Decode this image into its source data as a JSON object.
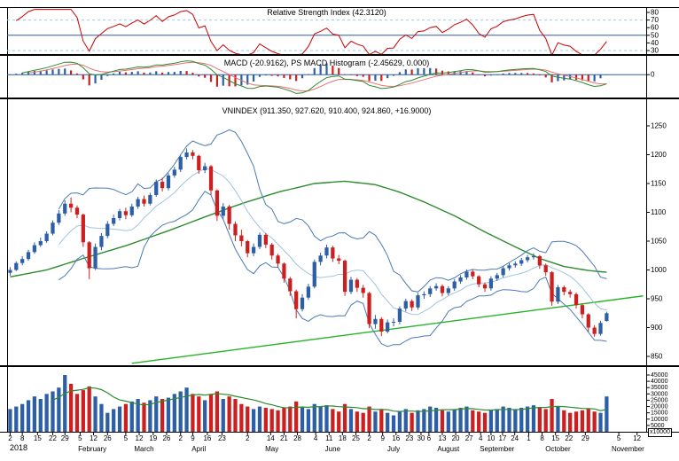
{
  "chart_data": {
    "type": "candlestick",
    "symbol": "VNINDEX",
    "panels": {
      "rsi": {
        "title": "Relative Strength Index (42.3120)",
        "indicator": "RSI",
        "value": 42.312,
        "y_ticks": [
          30,
          40,
          50,
          60,
          70,
          80
        ],
        "levels": {
          "overbought": 70,
          "midline": 50,
          "oversold": 30
        }
      },
      "macd": {
        "title": "MACD (-20.9162), PS MACD Histogram (-2.45629, 0.000)",
        "macd_value": -20.9162,
        "histogram_value": -2.45629,
        "signal_ref": 0.0,
        "y_ticks": [
          0
        ]
      },
      "price": {
        "title": "VNINDEX (911.350, 927.620, 910.400, 924.860, +16.9000)",
        "open": 911.35,
        "high": 927.62,
        "low": 910.4,
        "close": 924.86,
        "change": 16.9,
        "y_ticks": [
          850,
          900,
          950,
          1000,
          1050,
          1100,
          1150,
          1200,
          1250
        ]
      },
      "volume": {
        "y_ticks": [
          5000,
          10000,
          15000,
          20000,
          25000,
          30000,
          35000,
          40000,
          45000
        ],
        "unit": "x10000"
      }
    },
    "x_axis": {
      "year": "2018",
      "day_ticks": [
        [
          0,
          "2"
        ],
        [
          2,
          "8"
        ],
        [
          4.5,
          "15"
        ],
        [
          7,
          "22"
        ],
        [
          9,
          "29"
        ],
        [
          11.5,
          "5"
        ],
        [
          13.7,
          "12"
        ],
        [
          16,
          "26"
        ],
        [
          19,
          "5"
        ],
        [
          21.2,
          "12"
        ],
        [
          23.5,
          "19"
        ],
        [
          25.7,
          "26"
        ],
        [
          28,
          "2"
        ],
        [
          30,
          "9"
        ],
        [
          32.4,
          "16"
        ],
        [
          34.8,
          "23"
        ],
        [
          39,
          "2"
        ],
        [
          42.8,
          "14"
        ],
        [
          45,
          "21"
        ],
        [
          47.2,
          "28"
        ],
        [
          50.2,
          "4"
        ],
        [
          52.4,
          "11"
        ],
        [
          54.6,
          "18"
        ],
        [
          56.8,
          "25"
        ],
        [
          59,
          "2"
        ],
        [
          61.2,
          "9"
        ],
        [
          63.4,
          "16"
        ],
        [
          65.6,
          "23"
        ],
        [
          67.5,
          "30"
        ],
        [
          68.8,
          "6"
        ],
        [
          71,
          "13"
        ],
        [
          73.2,
          "20"
        ],
        [
          75.4,
          "27"
        ],
        [
          77.3,
          "4"
        ],
        [
          79,
          "10"
        ],
        [
          80.9,
          "17"
        ],
        [
          82.9,
          "24"
        ],
        [
          85.2,
          "1"
        ],
        [
          87.4,
          "8"
        ],
        [
          89.6,
          "15"
        ],
        [
          91.8,
          "22"
        ],
        [
          94.5,
          "29"
        ],
        [
          100,
          "5"
        ],
        [
          103,
          "12"
        ]
      ],
      "month_labels": [
        [
          13.5,
          "February"
        ],
        [
          22,
          "March"
        ],
        [
          31,
          "April"
        ],
        [
          43,
          "May"
        ],
        [
          53,
          "June"
        ],
        [
          63,
          "July"
        ],
        [
          72,
          "August"
        ],
        [
          80,
          "September"
        ],
        [
          90,
          "October"
        ],
        [
          101.5,
          "November"
        ]
      ]
    },
    "domain_slots": 105,
    "candles": [
      [
        995,
        1005,
        990,
        1000,
        18000
      ],
      [
        1000,
        1015,
        998,
        1012,
        20000
      ],
      [
        1012,
        1024,
        1008,
        1019,
        22000
      ],
      [
        1019,
        1035,
        1016,
        1031,
        25000
      ],
      [
        1031,
        1048,
        1028,
        1043,
        28000
      ],
      [
        1043,
        1056,
        1040,
        1050,
        26000
      ],
      [
        1050,
        1067,
        1047,
        1063,
        30000
      ],
      [
        1063,
        1086,
        1060,
        1082,
        32000
      ],
      [
        1082,
        1104,
        1078,
        1098,
        35000
      ],
      [
        1098,
        1121,
        1094,
        1115,
        45000
      ],
      [
        1115,
        1126,
        1100,
        1108,
        38000
      ],
      [
        1108,
        1112,
        1090,
        1096,
        30000
      ],
      [
        1096,
        1098,
        1040,
        1048,
        33000
      ],
      [
        1048,
        1050,
        984,
        1003,
        36000
      ],
      [
        1003,
        1046,
        1000,
        1040,
        28000
      ],
      [
        1040,
        1064,
        1034,
        1059,
        22000
      ],
      [
        1059,
        1085,
        1055,
        1080,
        15000
      ],
      [
        1080,
        1096,
        1076,
        1090,
        18000
      ],
      [
        1090,
        1106,
        1086,
        1102,
        20000
      ],
      [
        1102,
        1108,
        1088,
        1095,
        22000
      ],
      [
        1095,
        1115,
        1092,
        1110,
        24000
      ],
      [
        1110,
        1127,
        1106,
        1123,
        26000
      ],
      [
        1123,
        1129,
        1110,
        1115,
        23000
      ],
      [
        1115,
        1134,
        1112,
        1130,
        25000
      ],
      [
        1130,
        1157,
        1127,
        1153,
        28000
      ],
      [
        1153,
        1160,
        1136,
        1142,
        26000
      ],
      [
        1142,
        1168,
        1138,
        1164,
        27000
      ],
      [
        1164,
        1179,
        1160,
        1174,
        30000
      ],
      [
        1174,
        1199,
        1170,
        1196,
        32000
      ],
      [
        1196,
        1211,
        1192,
        1204,
        35000
      ],
      [
        1204,
        1208,
        1192,
        1198,
        30000
      ],
      [
        1198,
        1200,
        1167,
        1173,
        28000
      ],
      [
        1173,
        1186,
        1168,
        1180,
        25000
      ],
      [
        1180,
        1182,
        1130,
        1138,
        30000
      ],
      [
        1138,
        1140,
        1085,
        1094,
        32000
      ],
      [
        1094,
        1116,
        1088,
        1110,
        26000
      ],
      [
        1110,
        1113,
        1070,
        1080,
        28000
      ],
      [
        1080,
        1084,
        1050,
        1060,
        26000
      ],
      [
        1060,
        1070,
        1041,
        1050,
        22000
      ],
      [
        1050,
        1052,
        1022,
        1029,
        20000
      ],
      [
        1029,
        1046,
        1024,
        1040,
        18000
      ],
      [
        1040,
        1065,
        1036,
        1061,
        20000
      ],
      [
        1061,
        1064,
        1038,
        1044,
        19000
      ],
      [
        1044,
        1047,
        1018,
        1025,
        18000
      ],
      [
        1025,
        1028,
        1004,
        1011,
        17000
      ],
      [
        1011,
        1013,
        978,
        985,
        19000
      ],
      [
        985,
        988,
        955,
        963,
        20000
      ],
      [
        963,
        966,
        916,
        932,
        24000
      ],
      [
        932,
        958,
        928,
        952,
        20000
      ],
      [
        952,
        976,
        948,
        971,
        18000
      ],
      [
        971,
        1018,
        968,
        1014,
        22000
      ],
      [
        1014,
        1030,
        1008,
        1025,
        20000
      ],
      [
        1025,
        1044,
        1020,
        1039,
        21000
      ],
      [
        1039,
        1042,
        1014,
        1020,
        18000
      ],
      [
        1020,
        1026,
        1010,
        1016,
        16000
      ],
      [
        1016,
        1018,
        955,
        962,
        22000
      ],
      [
        962,
        988,
        958,
        983,
        18000
      ],
      [
        983,
        986,
        962,
        969,
        16000
      ],
      [
        969,
        974,
        952,
        960,
        15000
      ],
      [
        960,
        962,
        899,
        906,
        20000
      ],
      [
        906,
        922,
        898,
        915,
        16000
      ],
      [
        915,
        918,
        885,
        893,
        18000
      ],
      [
        893,
        914,
        890,
        909,
        15000
      ],
      [
        909,
        916,
        902,
        910,
        13000
      ],
      [
        910,
        937,
        906,
        933,
        16000
      ],
      [
        933,
        950,
        928,
        946,
        18000
      ],
      [
        946,
        949,
        929,
        935,
        15000
      ],
      [
        935,
        960,
        931,
        956,
        17000
      ],
      [
        956,
        963,
        950,
        958,
        18000
      ],
      [
        958,
        972,
        953,
        968,
        20000
      ],
      [
        968,
        977,
        964,
        972,
        19000
      ],
      [
        972,
        975,
        954,
        960,
        17000
      ],
      [
        960,
        972,
        956,
        968,
        16000
      ],
      [
        968,
        984,
        964,
        980,
        18000
      ],
      [
        980,
        991,
        976,
        987,
        19000
      ],
      [
        987,
        1001,
        983,
        997,
        20000
      ],
      [
        997,
        1000,
        984,
        989,
        17000
      ],
      [
        989,
        991,
        970,
        975,
        16000
      ],
      [
        975,
        978,
        962,
        968,
        15000
      ],
      [
        968,
        989,
        964,
        985,
        17000
      ],
      [
        985,
        995,
        981,
        991,
        18000
      ],
      [
        991,
        1007,
        987,
        1003,
        20000
      ],
      [
        1003,
        1012,
        999,
        1008,
        19000
      ],
      [
        1008,
        1015,
        1004,
        1011,
        18000
      ],
      [
        1011,
        1021,
        1007,
        1017,
        19000
      ],
      [
        1017,
        1026,
        1013,
        1022,
        20000
      ],
      [
        1022,
        1029,
        1018,
        1024,
        21000
      ],
      [
        1024,
        1026,
        1002,
        1008,
        19000
      ],
      [
        1008,
        1011,
        990,
        996,
        18000
      ],
      [
        996,
        998,
        938,
        945,
        26000
      ],
      [
        945,
        974,
        941,
        970,
        20000
      ],
      [
        970,
        973,
        956,
        962,
        17000
      ],
      [
        962,
        966,
        952,
        958,
        15000
      ],
      [
        958,
        961,
        933,
        939,
        16000
      ],
      [
        939,
        942,
        916,
        923,
        17000
      ],
      [
        923,
        925,
        893,
        900,
        18000
      ],
      [
        900,
        904,
        884,
        889,
        16000
      ],
      [
        889,
        912,
        886,
        908,
        15000
      ],
      [
        911.35,
        927.62,
        910.4,
        924.86,
        28000
      ]
    ],
    "overlays": {
      "trendline": {
        "from": [
          20,
          838
        ],
        "to": [
          104,
          955
        ]
      },
      "ma_long_points": [
        [
          0,
          988
        ],
        [
          6,
          1000
        ],
        [
          12,
          1020
        ],
        [
          19,
          1042
        ],
        [
          26,
          1068
        ],
        [
          32,
          1092
        ],
        [
          38,
          1115
        ],
        [
          44,
          1135
        ],
        [
          50,
          1150
        ],
        [
          55,
          1154
        ],
        [
          60,
          1148
        ],
        [
          64,
          1135
        ],
        [
          68,
          1118
        ],
        [
          73,
          1094
        ],
        [
          78,
          1066
        ],
        [
          83,
          1040
        ],
        [
          87,
          1020
        ],
        [
          91,
          1006
        ],
        [
          95,
          999
        ],
        [
          98,
          996
        ]
      ]
    },
    "colors": {
      "up": "#2d5fa6",
      "down": "#cc2020",
      "bollinger": "#4a7ab5",
      "bollinger_mid": "#9fc4e0",
      "ma_long": "#2e8b2e",
      "trendline": "#27b327",
      "rsi_line": "#cc0000",
      "rsi_band": "#9ccde8",
      "midline_blue": "#2d5fa6",
      "macd_line": "#2e8b2e",
      "macd_signal": "#e87070",
      "volume_ma": "#2e8b2e",
      "axis_text": "#000000",
      "separator": "#000000"
    }
  }
}
